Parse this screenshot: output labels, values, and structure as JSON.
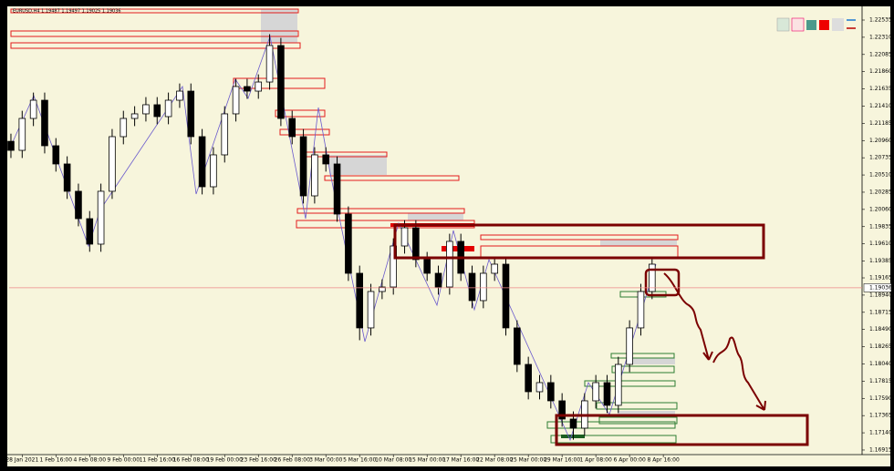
{
  "chart_data": {
    "type": "candlestick",
    "title": "EURUSD,H4 1.19487 1.19497 1.19025 1.19036",
    "up_color": "#ffffff",
    "down_color": "#000000",
    "wick_color": "#000000",
    "xlim": [
      -0.16,
      75.67
    ],
    "xticks": [
      {
        "value": 1,
        "label": "28 Jan 2021"
      },
      {
        "value": 4,
        "label": "1 Feb 16:00"
      },
      {
        "value": 7,
        "label": "4 Feb 08:00"
      },
      {
        "value": 10,
        "label": "9 Feb 00:00"
      },
      {
        "value": 13,
        "label": "11 Feb 16:00"
      },
      {
        "value": 16,
        "label": "16 Feb 08:00"
      },
      {
        "value": 19,
        "label": "19 Feb 00:00"
      },
      {
        "value": 22,
        "label": "23 Feb 16:00"
      },
      {
        "value": 25,
        "label": "26 Feb 08:00"
      },
      {
        "value": 28,
        "label": "3 Mar 00:00"
      },
      {
        "value": 31,
        "label": "5 Mar 16:00"
      },
      {
        "value": 34,
        "label": "10 Mar 08:00"
      },
      {
        "value": 37,
        "label": "15 Mar 00:00"
      },
      {
        "value": 40,
        "label": "17 Mar 16:00"
      },
      {
        "value": 43,
        "label": "22 Mar 08:00"
      },
      {
        "value": 46,
        "label": "25 Mar 00:00"
      },
      {
        "value": 49,
        "label": "29 Mar 16:00"
      },
      {
        "value": 52,
        "label": "1 Apr 08:00"
      },
      {
        "value": 55,
        "label": "6 Apr 00:00"
      },
      {
        "value": 58,
        "label": "8 Apr 16:00"
      }
    ],
    "ylim": [
      1.16867,
      1.22678
    ],
    "yticks": [
      {
        "value": 1.22535,
        "label": "1.22535"
      },
      {
        "value": 1.2231,
        "label": "1.22310"
      },
      {
        "value": 1.22085,
        "label": "1.22085"
      },
      {
        "value": 1.2186,
        "label": "1.21860"
      },
      {
        "value": 1.21635,
        "label": "1.21635"
      },
      {
        "value": 1.2141,
        "label": "1.21410"
      },
      {
        "value": 1.21185,
        "label": "1.21185"
      },
      {
        "value": 1.2096,
        "label": "1.20960"
      },
      {
        "value": 1.20735,
        "label": "1.20735"
      },
      {
        "value": 1.2051,
        "label": "1.20510"
      },
      {
        "value": 1.20285,
        "label": "1.20285"
      },
      {
        "value": 1.2006,
        "label": "1.20060"
      },
      {
        "value": 1.19835,
        "label": "1.19835"
      },
      {
        "value": 1.1961,
        "label": "1.19610"
      },
      {
        "value": 1.19385,
        "label": "1.19385"
      },
      {
        "value": 1.19165,
        "label": "1.19165"
      },
      {
        "value": 1.1894,
        "label": "1.18940"
      },
      {
        "value": 1.18715,
        "label": "1.18715"
      },
      {
        "value": 1.1849,
        "label": "1.18490"
      },
      {
        "value": 1.18265,
        "label": "1.18265"
      },
      {
        "value": 1.1804,
        "label": "1.18040"
      },
      {
        "value": 1.17815,
        "label": "1.17815"
      },
      {
        "value": 1.1759,
        "label": "1.17590"
      },
      {
        "value": 1.17365,
        "label": "1.17365"
      },
      {
        "value": 1.1714,
        "label": "1.17140"
      },
      {
        "value": 1.16915,
        "label": "1.16915"
      }
    ],
    "current_price": 1.19036,
    "open": [
      1.2095,
      1.20832,
      1.21249,
      1.21487,
      1.20892,
      1.20654,
      1.20297,
      1.19939,
      1.19606,
      1.20297,
      1.21011,
      1.21249,
      1.21309,
      1.21428,
      1.21273,
      1.21487,
      1.21606,
      1.21011,
      1.20356,
      1.20773,
      1.21309,
      1.21666,
      1.21606,
      1.21725,
      1.22202,
      1.21249,
      1.21011,
      1.20237,
      1.20773,
      1.20654,
      1.19999,
      1.19225,
      1.18511,
      1.18987,
      1.19046,
      1.19582,
      1.1982,
      1.19404,
      1.19225,
      1.19046,
      1.19642,
      1.19225,
      1.18868,
      1.19225,
      1.19344,
      1.18511,
      1.18034,
      1.17677,
      1.17796,
      1.17558,
      1.1732,
      1.17201,
      1.17558,
      1.17796,
      1.17499,
      1.18034,
      1.18511,
      1.18987
    ],
    "high": [
      1.2105,
      1.21349,
      1.21587,
      1.21587,
      1.20992,
      1.20754,
      1.20397,
      1.20039,
      1.20397,
      1.21111,
      1.21349,
      1.21409,
      1.21528,
      1.21528,
      1.21587,
      1.21706,
      1.21706,
      1.21111,
      1.20873,
      1.21409,
      1.21766,
      1.21766,
      1.21825,
      1.2235,
      1.22302,
      1.21349,
      1.21111,
      1.20873,
      1.20873,
      1.20754,
      1.20099,
      1.19325,
      1.19087,
      1.19146,
      1.19682,
      1.1992,
      1.1992,
      1.19504,
      1.19325,
      1.19742,
      1.19742,
      1.19325,
      1.19325,
      1.19444,
      1.19444,
      1.18611,
      1.18134,
      1.17896,
      1.17896,
      1.17658,
      1.1742,
      1.17658,
      1.17896,
      1.17896,
      1.18134,
      1.18611,
      1.19087,
      1.19444
    ],
    "low": [
      1.20732,
      1.20732,
      1.21149,
      1.20792,
      1.20554,
      1.20197,
      1.19839,
      1.19506,
      1.19506,
      1.20197,
      1.20911,
      1.21149,
      1.21209,
      1.21173,
      1.21173,
      1.21387,
      1.20911,
      1.20256,
      1.20256,
      1.20673,
      1.21209,
      1.21506,
      1.21506,
      1.21625,
      1.21149,
      1.20911,
      1.20137,
      1.20137,
      1.20554,
      1.19899,
      1.19125,
      1.1835,
      1.18411,
      1.18887,
      1.18946,
      1.19482,
      1.19304,
      1.19125,
      1.18946,
      1.18946,
      1.19125,
      1.18768,
      1.18768,
      1.19125,
      1.18411,
      1.17934,
      1.17577,
      1.17577,
      1.17458,
      1.1722,
      1.1705,
      1.17101,
      1.17458,
      1.17399,
      1.17399,
      1.17934,
      1.18411,
      1.18887
    ],
    "close": [
      1.20832,
      1.21249,
      1.21487,
      1.20892,
      1.20654,
      1.20297,
      1.19939,
      1.19606,
      1.20297,
      1.21011,
      1.21249,
      1.21309,
      1.21428,
      1.21273,
      1.21487,
      1.21606,
      1.21011,
      1.20356,
      1.20773,
      1.21309,
      1.21666,
      1.21606,
      1.21725,
      1.22202,
      1.21249,
      1.21011,
      1.20237,
      1.20773,
      1.20654,
      1.19999,
      1.19225,
      1.18511,
      1.18987,
      1.19046,
      1.19582,
      1.1982,
      1.19404,
      1.19225,
      1.19046,
      1.19642,
      1.19225,
      1.18868,
      1.19225,
      1.19344,
      1.18511,
      1.18034,
      1.17677,
      1.17796,
      1.17558,
      1.1732,
      1.17201,
      1.17558,
      1.17796,
      1.17499,
      1.18034,
      1.18511,
      1.18987,
      1.19344
    ]
  }
}
